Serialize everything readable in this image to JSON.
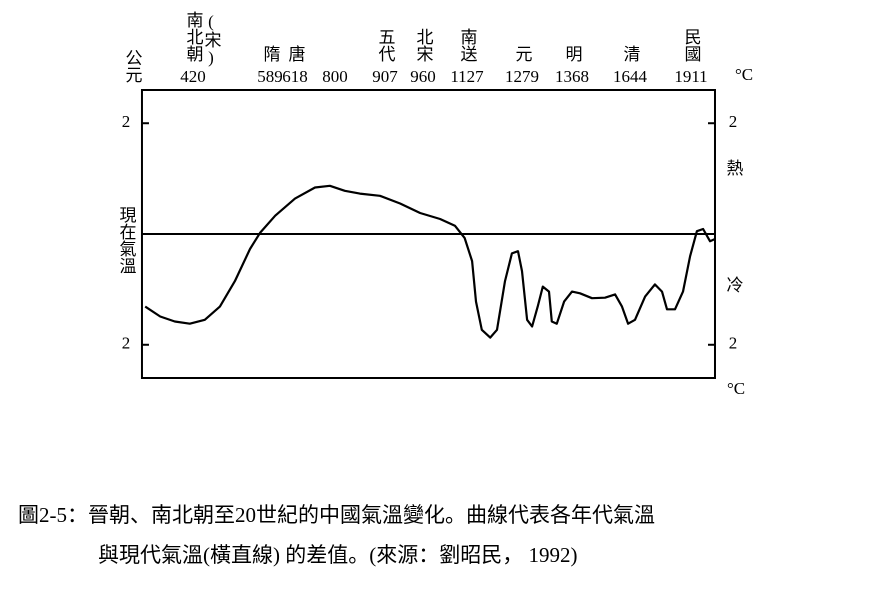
{
  "chart_data": {
    "type": "line",
    "x_label": "公元",
    "xticks": [
      420,
      589,
      618,
      800,
      907,
      960,
      1127,
      1279,
      1368,
      1644,
      1911
    ],
    "eras": [
      "南北朝",
      "隋",
      "唐",
      null,
      "五代",
      "北宋",
      "南送",
      "元",
      "明",
      "清",
      "民國"
    ],
    "era_note": "(宋)",
    "xlim": [
      308,
      2016
    ],
    "ylim": [
      -2.6,
      2.6
    ],
    "yticks": [
      {
        "value": 2,
        "label": "2"
      },
      {
        "value": -2,
        "label": "2"
      }
    ],
    "y2lim": [
      -2.6,
      2.6
    ],
    "y2ticks": [
      {
        "value": 2,
        "label": "2"
      },
      {
        "value": -2,
        "label": "2"
      }
    ],
    "unit_top": "°C",
    "unit_bottom": "°C",
    "warm_label": "熱",
    "cold_label": "冷",
    "reference_line": {
      "value": 0,
      "label": "現在氣溫"
    },
    "series": [
      {
        "color": "#000000",
        "x": [
          315,
          348,
          380,
          413,
          446,
          479,
          512,
          545,
          567,
          595,
          618,
          709,
          777,
          821,
          853,
          896,
          928,
          956,
          1025,
          1081,
          1118,
          1141,
          1152,
          1168,
          1191,
          1210,
          1232,
          1251,
          1268,
          1279,
          1288,
          1297,
          1307,
          1316,
          1327,
          1332,
          1341,
          1354,
          1368,
          1406,
          1463,
          1525,
          1573,
          1606,
          1635,
          1666,
          1710,
          1753,
          1784,
          1806,
          1841,
          1876,
          1907,
          1937,
          1964,
          1994,
          2016
        ],
        "values": [
          -1.31,
          -1.49,
          -1.58,
          -1.62,
          -1.55,
          -1.31,
          -0.85,
          -0.27,
          0.02,
          0.33,
          0.64,
          0.84,
          0.87,
          0.78,
          0.73,
          0.69,
          0.55,
          0.38,
          0.27,
          0.15,
          -0.07,
          -0.49,
          -1.22,
          -1.73,
          -1.87,
          -1.73,
          -0.85,
          -0.35,
          -0.31,
          -0.67,
          -1.55,
          -1.67,
          -1.31,
          -0.95,
          -1.04,
          -1.58,
          -1.62,
          -1.22,
          -1.04,
          -1.07,
          -1.16,
          -1.15,
          -1.09,
          -1.31,
          -1.62,
          -1.55,
          -1.13,
          -0.91,
          -1.04,
          -1.36,
          -1.36,
          -1.04,
          -0.4,
          0.05,
          0.09,
          -0.13,
          -0.09
        ]
      }
    ],
    "caption": [
      "圖2-5：晉朝、南北朝至20世紀的中國氣溫變化。曲線代表各年代氣溫",
      "與現代氣溫(橫直線) 的差值。(來源：劉昭民， 1992)"
    ]
  }
}
